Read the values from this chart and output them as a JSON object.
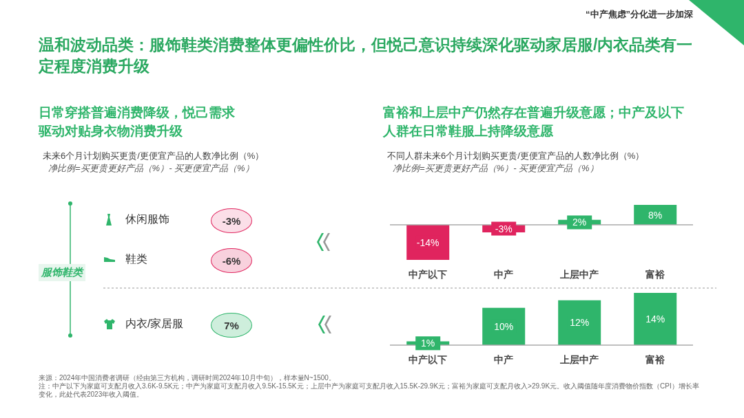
{
  "chart_data": [
    {
      "type": "other",
      "title": "温和波动品类：服饰鞋类消费整体更偏性价比，但悦己意识持续深化驱动家居服/内衣品类有一定程度消费升级",
      "subtitle": "日常穿搭普遍消费降级，悦己需求驱动对贴身衣物消费升级",
      "annotations": [
        "“中产焦虑”分化进一步加深",
        "未来6个月计划购买更贵/更便宜产品的人数净比例（%）",
        "净比例=买更贵更好产品（%）- 买更便宜产品（%）",
        "服饰鞋类",
        "来源：2024年中国消费者调研（经由第三方机构，调研时间2024年10月中旬），样本量N~1500。",
        "注：中产以下为家庭可支配月收入3.6K-9.5K元；中产为家庭可支配月收入9.5K-15.5K元；上层中产为家庭可支配月收入15.5K-29.9K元；富裕为家庭可支配月收入>29.9K元。收入阈值随年度消费物价指数（CPI）增长率变化，此处代表2023年收入阈值。"
      ],
      "categories": [
        "休闲服饰",
        "鞋类",
        "内衣/家居服"
      ],
      "values": [
        -3,
        -6,
        7
      ],
      "value_labels": [
        "-3%",
        "-6%",
        "7%"
      ],
      "colors": [
        "#e0245e",
        "#e0245e",
        "#2fb56b"
      ]
    },
    {
      "type": "bar",
      "title": "富裕和上层中产仍然存在普遍升级意愿；中产及以下人群在日常鞋服上持降级意愿",
      "subtitle": "不同人群未来6个月计划购买更贵/更便宜产品的人数净比例（%）",
      "annotations": [
        "净比例=买更贵更好产品（%）- 买更便宜产品（%）"
      ],
      "categories": [
        "中产以下",
        "中产",
        "上层中产",
        "富裕"
      ],
      "values": [
        -14,
        -3,
        2,
        8
      ],
      "value_labels": [
        "-14%",
        "-3%",
        "2%",
        "8%"
      ],
      "colors": [
        "#e0245e",
        "#e0245e",
        "#2fb56b",
        "#2fb56b"
      ]
    },
    {
      "type": "bar",
      "categories": [
        "中产以下",
        "中产",
        "上层中产",
        "富裕"
      ],
      "values": [
        1,
        10,
        12,
        14
      ],
      "value_labels": [
        "1%",
        "10%",
        "12%",
        "14%"
      ],
      "colors": [
        "#2fb56b",
        "#2fb56b",
        "#2fb56b",
        "#2fb56b"
      ]
    }
  ]
}
